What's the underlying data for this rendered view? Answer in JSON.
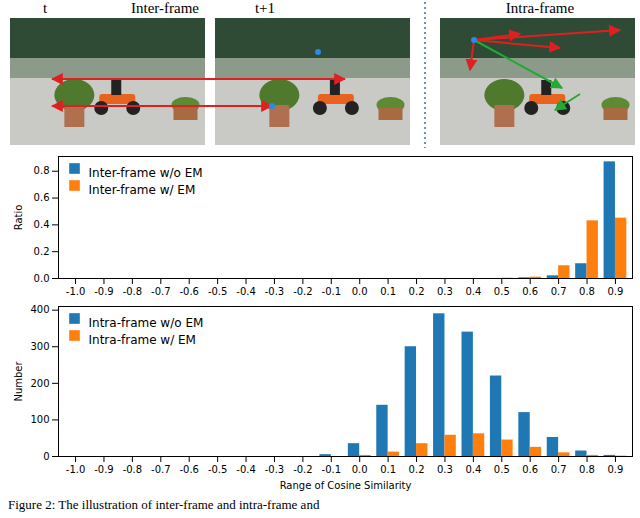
{
  "illustration": {
    "left_label": "t",
    "center_label": "Inter-frame",
    "right_label": "t+1",
    "intra_label": "Intra-frame"
  },
  "caption": "Figure 2: The illustration of inter-frame and intra-frame and",
  "chart_data": [
    {
      "type": "bar",
      "y_label": "Ratio",
      "categories": [
        "-1.0",
        "-0.9",
        "-0.8",
        "-0.7",
        "-0.6",
        "-0.5",
        "-0.4",
        "-0.3",
        "-0.2",
        "-0.1",
        "0.0",
        "0.1",
        "0.2",
        "0.3",
        "0.4",
        "0.5",
        "0.6",
        "0.7",
        "0.8",
        "0.9"
      ],
      "series": [
        {
          "name": "Inter-frame w/o EM",
          "color": "#1f77b4",
          "values": [
            0,
            0,
            0,
            0,
            0,
            0,
            0,
            0,
            0,
            0,
            0,
            0,
            0,
            0,
            0,
            0,
            0.005,
            0.02,
            0.11,
            0.87
          ]
        },
        {
          "name": "Inter-frame w/ EM",
          "color": "#ff7f0e",
          "values": [
            0,
            0,
            0,
            0,
            0,
            0,
            0,
            0,
            0,
            0,
            0,
            0,
            0,
            0,
            0,
            0.002,
            0.01,
            0.095,
            0.43,
            0.45
          ]
        }
      ],
      "ylim": [
        0,
        0.91
      ],
      "yticks": [
        {
          "value": 0,
          "label": "0.0"
        },
        {
          "value": 0.2,
          "label": "0.2"
        },
        {
          "value": 0.4,
          "label": "0.4"
        },
        {
          "value": 0.6,
          "label": "0.6"
        },
        {
          "value": 0.8,
          "label": "0.8"
        }
      ],
      "legend": "upper left",
      "grid": false
    },
    {
      "type": "bar",
      "x_label": "Range of Cosine Similarity",
      "y_label": "Number",
      "categories": [
        "-1.0",
        "-0.9",
        "-0.8",
        "-0.7",
        "-0.6",
        "-0.5",
        "-0.4",
        "-0.3",
        "-0.2",
        "-0.1",
        "0.0",
        "0.1",
        "0.2",
        "0.3",
        "0.4",
        "0.5",
        "0.6",
        "0.7",
        "0.8",
        "0.9"
      ],
      "series": [
        {
          "name": "Intra-frame w/o EM",
          "color": "#1f77b4",
          "values": [
            0,
            0,
            0,
            0,
            0,
            0,
            0,
            0,
            0,
            5,
            35,
            140,
            300,
            390,
            340,
            220,
            120,
            52,
            15,
            3
          ]
        },
        {
          "name": "Intra-frame w/ EM",
          "color": "#ff7f0e",
          "values": [
            0,
            0,
            0,
            0,
            0,
            0,
            0,
            0,
            0,
            0,
            3,
            12,
            35,
            58,
            62,
            45,
            25,
            10,
            3,
            1
          ]
        }
      ],
      "ylim": [
        0,
        410
      ],
      "yticks": [
        0,
        100,
        200,
        300,
        400
      ],
      "legend": "upper left",
      "grid": false
    }
  ]
}
